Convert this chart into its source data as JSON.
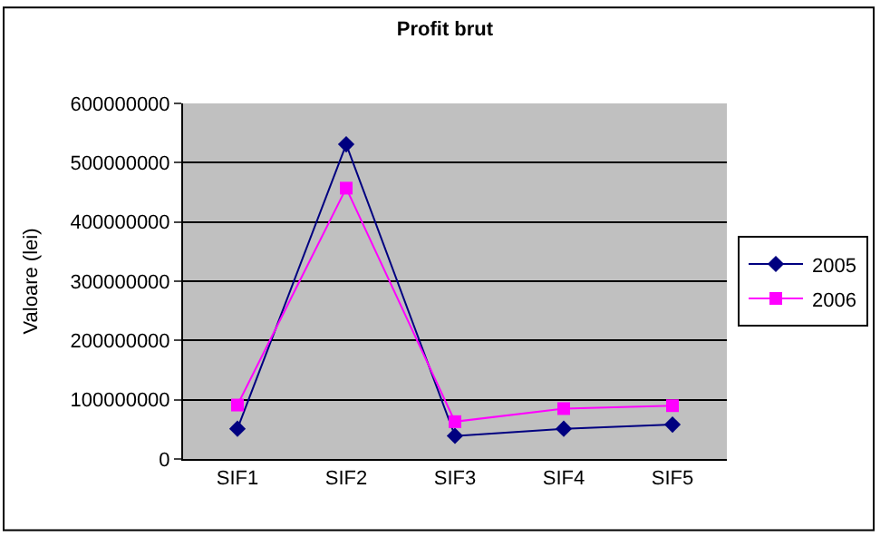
{
  "chart_data": {
    "type": "line",
    "title": "Profit brut",
    "ylabel": "Valoare (lei)",
    "categories": [
      "SIF1",
      "SIF2",
      "SIF3",
      "SIF4",
      "SIF5"
    ],
    "series": [
      {
        "name": "2005",
        "color": "#000080",
        "marker": "diamond",
        "values": [
          51000000,
          531000000,
          39000000,
          51000000,
          58000000
        ]
      },
      {
        "name": "2006",
        "color": "#ff00ff",
        "marker": "square",
        "values": [
          91000000,
          457000000,
          63000000,
          85000000,
          90000000
        ]
      }
    ],
    "ylim": [
      0,
      600000000
    ],
    "yticks": [
      0,
      100000000,
      200000000,
      300000000,
      400000000,
      500000000,
      600000000
    ],
    "grid": "y",
    "legend": "right"
  }
}
